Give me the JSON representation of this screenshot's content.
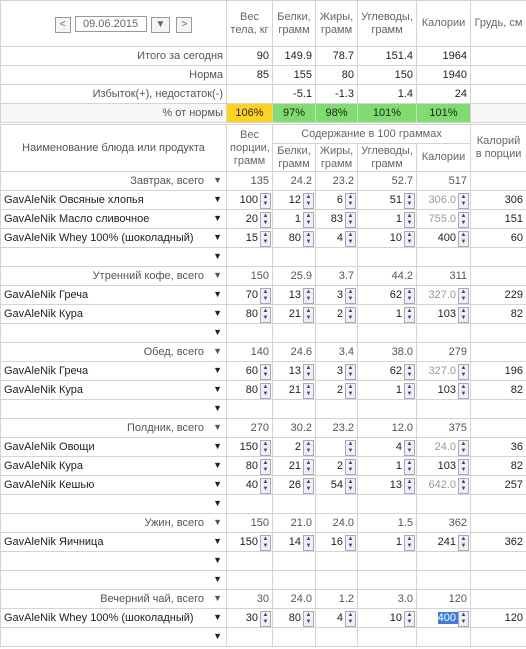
{
  "nav": {
    "prev": "<",
    "date": "09.06.2015",
    "dropdown": "▼",
    "next": ">"
  },
  "summary": {
    "headers": [
      "Вес тела, кг",
      "Белки, грамм",
      "Жиры, грамм",
      "Углеводы, грамм",
      "Калории",
      "Грудь, см"
    ],
    "rows": [
      {
        "label": "Итого за сегодня",
        "cells": [
          "90",
          "149.9",
          "78.7",
          "151.4",
          "1964",
          null
        ]
      },
      {
        "label": "Норма",
        "cells": [
          "85",
          "155",
          "80",
          "150",
          "1940",
          null
        ]
      },
      {
        "label": "Избыток(+), недостаток(-)",
        "cells": [
          null,
          "-5.1",
          "-1.3",
          "1.4",
          "24",
          null
        ]
      },
      {
        "label": "% от нормы",
        "cells": [
          "106%",
          "97%",
          "98%",
          "101%",
          "101%",
          null
        ],
        "colors": [
          "#ffd21f",
          "#7fdc6f",
          "#7fdc6f",
          "#7fdc6f",
          "#7fdc6f",
          null
        ]
      }
    ]
  },
  "diary": {
    "header": {
      "name": "Наименование блюда или продукта",
      "weight": "Вес порции, грамм",
      "group": "Содержание в 100 граммах",
      "columns": [
        "Белки, грамм",
        "Жиры, грамм",
        "Углеводы, грамм",
        "Калории"
      ],
      "portion": "Калорий в порции"
    },
    "meals": [
      {
        "label": "Завтрак, всего",
        "totals": [
          "135",
          "24.2",
          "23.2",
          "52.7",
          "517"
        ],
        "items": [
          {
            "name": "GavAleNik Овсяные хлопья",
            "values": [
              "100",
              "12",
              "6",
              "51",
              "306.0",
              "306"
            ]
          },
          {
            "name": "GavAleNik Масло сливочное",
            "values": [
              "20",
              "1",
              "83",
              "1",
              "755.0",
              "151"
            ]
          },
          {
            "name": "GavAleNik Whey 100% (шоколадный)",
            "values": [
              "15",
              "80",
              "4",
              "10",
              "400",
              "60"
            ]
          },
          null
        ]
      },
      {
        "label": "Утренний кофе, всего",
        "totals": [
          "150",
          "25.9",
          "3.7",
          "44.2",
          "311"
        ],
        "items": [
          {
            "name": "GavAleNik Греча",
            "values": [
              "70",
              "13",
              "3",
              "62",
              "327.0",
              "229"
            ]
          },
          {
            "name": "GavAleNik Кура",
            "values": [
              "80",
              "21",
              "2",
              "1",
              "103",
              "82"
            ]
          },
          null
        ]
      },
      {
        "label": "Обед, всего",
        "totals": [
          "140",
          "24.6",
          "3.4",
          "38.0",
          "279"
        ],
        "items": [
          {
            "name": "GavAleNik Греча",
            "values": [
              "60",
              "13",
              "3",
              "62",
              "327.0",
              "196"
            ]
          },
          {
            "name": "GavAleNik Кура",
            "values": [
              "80",
              "21",
              "2",
              "1",
              "103",
              "82"
            ]
          },
          null
        ]
      },
      {
        "label": "Полдник, всего",
        "totals": [
          "270",
          "30.2",
          "23.2",
          "12.0",
          "375"
        ],
        "items": [
          {
            "name": "GavAleNik Овощи",
            "values": [
              "150",
              "2",
              null,
              "4",
              "24.0",
              "36"
            ]
          },
          {
            "name": "GavAleNik Кура",
            "values": [
              "80",
              "21",
              "2",
              "1",
              "103",
              "82"
            ]
          },
          {
            "name": "GavAleNik Кешью",
            "values": [
              "40",
              "26",
              "54",
              "13",
              "642.0",
              "257"
            ]
          },
          null
        ]
      },
      {
        "label": "Ужин, всего",
        "totals": [
          "150",
          "21.0",
          "24.0",
          "1.5",
          "362"
        ],
        "items": [
          {
            "name": "GavAleNik Яичница",
            "values": [
              "150",
              "14",
              "16",
              "1",
              "241",
              "362"
            ]
          },
          null,
          null
        ]
      },
      {
        "label": "Вечерний чай, всего",
        "totals": [
          "30",
          "24.0",
          "1.2",
          "3.0",
          "120"
        ],
        "items": [
          {
            "name": "GavAleNik Whey 100% (шоколадный)",
            "values": [
              "30",
              "80",
              "4",
              "10",
              "400",
              "120"
            ],
            "selected": 4
          },
          null
        ]
      }
    ]
  }
}
